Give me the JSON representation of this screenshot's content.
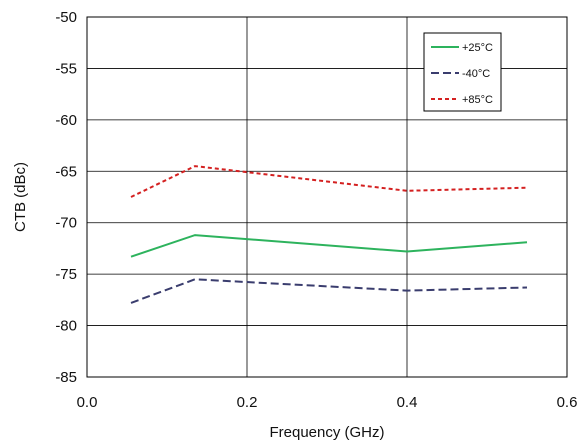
{
  "chart_data": {
    "type": "line",
    "title": "",
    "xlabel": "Frequency (GHz)",
    "ylabel": "CTB (dBc)",
    "xlim": [
      0.0,
      0.6
    ],
    "ylim": [
      -85,
      -50
    ],
    "x_ticks": [
      "0.0",
      "0.2",
      "0.4",
      "0.6"
    ],
    "y_ticks": [
      "-50",
      "-55",
      "-60",
      "-65",
      "-70",
      "-75",
      "-80",
      "-85"
    ],
    "grid": true,
    "legend_position": "top-right",
    "series": [
      {
        "name": "+25°C",
        "color": "#2db35d",
        "dash": "solid",
        "x": [
          0.055,
          0.135,
          0.4,
          0.55
        ],
        "y": [
          -73.3,
          -71.2,
          -72.8,
          -71.9
        ]
      },
      {
        "name": "-40°C",
        "color": "#3a3d6e",
        "dash": "dashed",
        "x": [
          0.055,
          0.135,
          0.4,
          0.55
        ],
        "y": [
          -77.8,
          -75.5,
          -76.6,
          -76.3
        ]
      },
      {
        "name": "+85°C",
        "color": "#d42020",
        "dash": "dotted",
        "x": [
          0.055,
          0.135,
          0.4,
          0.55
        ],
        "y": [
          -67.5,
          -64.5,
          -66.9,
          -66.6
        ]
      }
    ]
  }
}
